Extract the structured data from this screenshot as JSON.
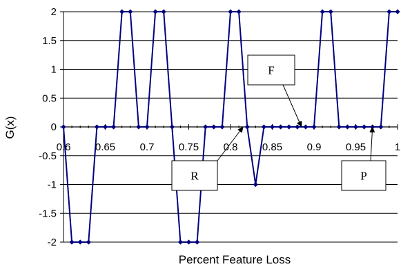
{
  "chart_data": {
    "type": "line",
    "xlabel": "Percent Feature Loss",
    "ylabel": "G(x)",
    "xlim": [
      0.6,
      1.0
    ],
    "ylim": [
      -2,
      2
    ],
    "x_ticks": [
      "0.6",
      "0.65",
      "0.7",
      "0.75",
      "0.8",
      "0.85",
      "0.9",
      "0.95",
      "1"
    ],
    "y_ticks": [
      "2",
      "1.5",
      "1",
      "0.5",
      "0",
      "-0.5",
      "-1",
      "-1.5",
      "-2"
    ],
    "grid": "horizontal",
    "series": [
      {
        "color": "#000080",
        "marker": "diamond",
        "points": [
          [
            0.6,
            0
          ],
          [
            0.61,
            -2
          ],
          [
            0.62,
            -2
          ],
          [
            0.63,
            -2
          ],
          [
            0.64,
            0
          ],
          [
            0.65,
            0
          ],
          [
            0.66,
            0
          ],
          [
            0.67,
            2
          ],
          [
            0.68,
            2
          ],
          [
            0.69,
            0
          ],
          [
            0.7,
            0
          ],
          [
            0.71,
            2
          ],
          [
            0.72,
            2
          ],
          [
            0.73,
            0
          ],
          [
            0.74,
            -2
          ],
          [
            0.75,
            -2
          ],
          [
            0.76,
            -2
          ],
          [
            0.77,
            0
          ],
          [
            0.78,
            0
          ],
          [
            0.79,
            0
          ],
          [
            0.8,
            2
          ],
          [
            0.81,
            2
          ],
          [
            0.82,
            0
          ],
          [
            0.83,
            -1
          ],
          [
            0.84,
            0
          ],
          [
            0.85,
            0
          ],
          [
            0.86,
            0
          ],
          [
            0.87,
            0
          ],
          [
            0.88,
            0
          ],
          [
            0.89,
            0
          ],
          [
            0.9,
            0
          ],
          [
            0.91,
            2
          ],
          [
            0.92,
            2
          ],
          [
            0.93,
            0
          ],
          [
            0.94,
            0
          ],
          [
            0.95,
            0
          ],
          [
            0.96,
            0
          ],
          [
            0.97,
            0
          ],
          [
            0.98,
            0
          ],
          [
            0.99,
            2
          ],
          [
            1.0,
            2
          ]
        ]
      }
    ],
    "annotations": [
      {
        "label": "F",
        "target": [
          0.885,
          0
        ]
      },
      {
        "label": "R",
        "target": [
          0.815,
          0
        ]
      },
      {
        "label": "P",
        "target": [
          0.97,
          0
        ]
      }
    ]
  }
}
